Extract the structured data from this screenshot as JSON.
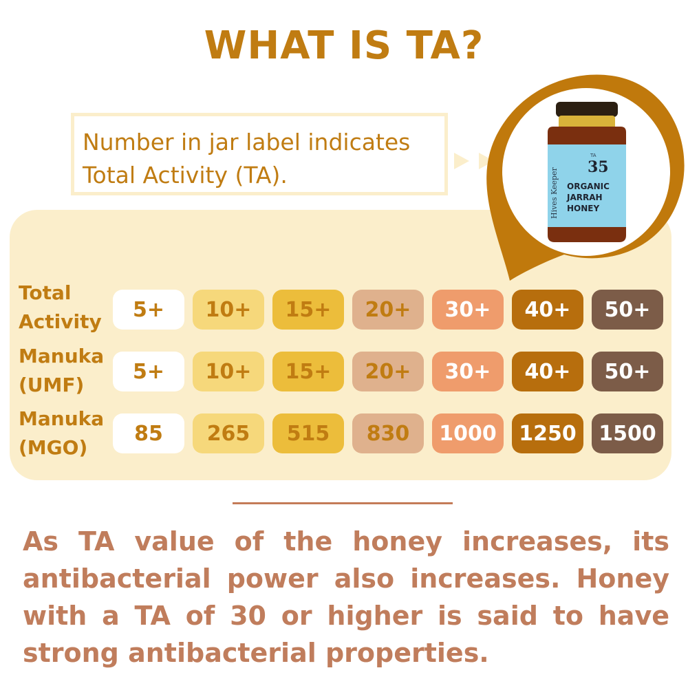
{
  "title": "WHAT IS TA?",
  "callout": {
    "line1": "Number in jar label indicates",
    "line2": "Total Activity (TA)."
  },
  "jar": {
    "brand": "Hives Keeper",
    "ta_prefix": "TA",
    "ta_number": "35",
    "product_line1": "ORGANIC",
    "product_line2": "JARRAH",
    "product_line3": "HONEY",
    "label_color": "#8fd3ea",
    "honey_color": "#7a2f0f",
    "lid_color": "#2b1f12"
  },
  "table": {
    "rows": [
      {
        "label_line1": "Total",
        "label_line2": "Activity",
        "values": [
          "5+",
          "10+",
          "15+",
          "20+",
          "30+",
          "40+",
          "50+"
        ]
      },
      {
        "label_line1": "Manuka",
        "label_line2": "(UMF)",
        "values": [
          "5+",
          "10+",
          "15+",
          "20+",
          "30+",
          "40+",
          "50+"
        ]
      },
      {
        "label_line1": "Manuka",
        "label_line2": "(MGO)",
        "values": [
          "85",
          "265",
          "515",
          "830",
          "1000",
          "1250",
          "1500"
        ]
      }
    ],
    "column_colors": [
      "#ffffff",
      "#f6d87b",
      "#ecbd3b",
      "#dfb18d",
      "#ef9c6c",
      "#b76e0d",
      "#7c5c48"
    ],
    "column_text_colors": [
      "#c07c12",
      "#c07c12",
      "#c07c12",
      "#c07c12",
      "#ffffff",
      "#ffffff",
      "#ffffff"
    ]
  },
  "body": "As TA value of the honey increases, its antibacterial power also increases. Honey with a TA of 30 or higher is said to have strong antibacterial properties.",
  "colors": {
    "accent": "#c07c12",
    "panel": "#fbeecb",
    "body_text": "#c07d5c"
  }
}
